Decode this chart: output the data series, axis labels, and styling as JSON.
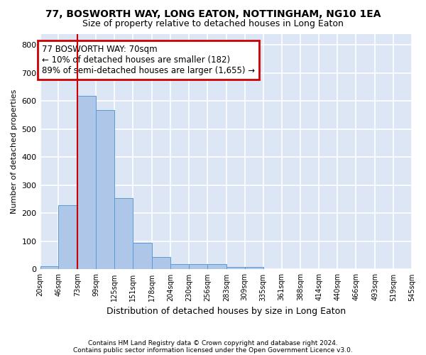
{
  "title": "77, BOSWORTH WAY, LONG EATON, NOTTINGHAM, NG10 1EA",
  "subtitle": "Size of property relative to detached houses in Long Eaton",
  "xlabel": "Distribution of detached houses by size in Long Eaton",
  "ylabel": "Number of detached properties",
  "footnote1": "Contains HM Land Registry data © Crown copyright and database right 2024.",
  "footnote2": "Contains public sector information licensed under the Open Government Licence v3.0.",
  "bin_edges": [
    20,
    46,
    73,
    99,
    125,
    151,
    178,
    204,
    230,
    256,
    283,
    309,
    335,
    361,
    388,
    414,
    440,
    466,
    493,
    519,
    545
  ],
  "bar_heights": [
    10,
    228,
    618,
    568,
    253,
    95,
    43,
    20,
    20,
    20,
    8,
    8,
    0,
    0,
    0,
    0,
    0,
    0,
    0,
    0
  ],
  "bar_color": "#aec6e8",
  "bar_edge_color": "#5a9bd5",
  "plot_bg_color": "#dce6f5",
  "grid_color": "#ffffff",
  "fig_bg_color": "#ffffff",
  "property_line_x": 73,
  "property_line_color": "#cc0000",
  "annotation_text": "77 BOSWORTH WAY: 70sqm\n← 10% of detached houses are smaller (182)\n89% of semi-detached houses are larger (1,655) →",
  "annotation_box_color": "#cc0000",
  "ylim": [
    0,
    840
  ],
  "yticks": [
    0,
    100,
    200,
    300,
    400,
    500,
    600,
    700,
    800
  ],
  "title_fontsize": 10,
  "subtitle_fontsize": 9,
  "annotation_fontsize": 8.5,
  "ylabel_fontsize": 8,
  "xlabel_fontsize": 9
}
